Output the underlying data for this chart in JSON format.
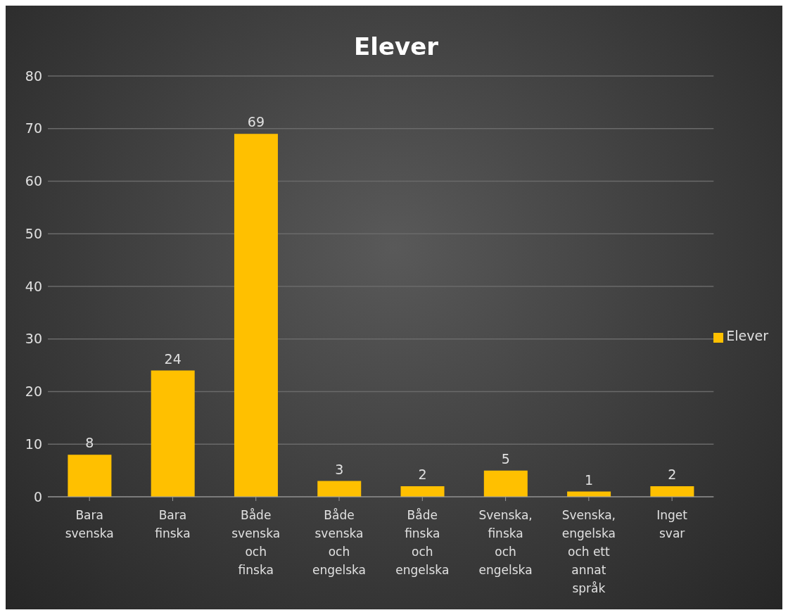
{
  "chart_data": {
    "type": "bar",
    "title": "Elever",
    "categories": [
      "Bara svenska",
      "Bara finska",
      "Både svenska och finska",
      "Både svenska och engelska",
      "Både finska och engelska",
      "Svenska, finska och engelska",
      "Svenska, engelska och ett annat språk",
      "Inget svar"
    ],
    "series": [
      {
        "name": "Elever",
        "color": "#ffc000",
        "values": [
          8,
          24,
          69,
          3,
          2,
          5,
          1,
          2
        ]
      }
    ],
    "ylim": [
      0,
      80
    ],
    "yticks": [
      0,
      10,
      20,
      30,
      40,
      50,
      60,
      70,
      80
    ],
    "grid": "y",
    "legend": "right",
    "data_labels": true
  }
}
